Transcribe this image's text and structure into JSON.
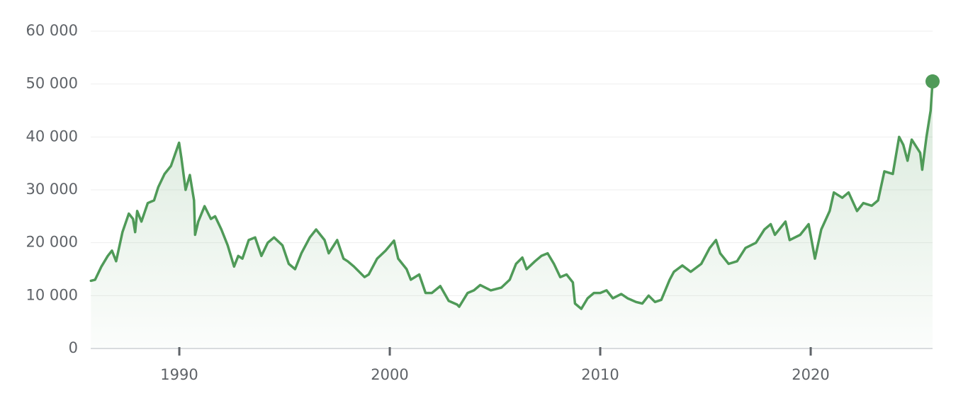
{
  "chart_data": {
    "type": "line",
    "color": "#4f9a58",
    "grid": true,
    "xlim": [
      1985.79,
      2025.79
    ],
    "ylim": [
      0,
      60000
    ],
    "xticks": [
      1990,
      2000,
      2010,
      2020
    ],
    "yticks": [
      {
        "value": 0,
        "label": "0"
      },
      {
        "value": 10000,
        "label": "10 000"
      },
      {
        "value": 20000,
        "label": "20 000"
      },
      {
        "value": 30000,
        "label": "30 000"
      },
      {
        "value": 40000,
        "label": "40 000"
      },
      {
        "value": 50000,
        "label": "50 000"
      },
      {
        "value": 60000,
        "label": "60 000"
      }
    ],
    "x": [
      1985.8,
      1986.0,
      1986.3,
      1986.6,
      1986.8,
      1987.0,
      1987.3,
      1987.6,
      1987.8,
      1987.9,
      1988.0,
      1988.2,
      1988.5,
      1988.8,
      1989.0,
      1989.3,
      1989.6,
      1989.99,
      1990.1,
      1990.3,
      1990.5,
      1990.7,
      1990.75,
      1990.9,
      1991.2,
      1991.5,
      1991.7,
      1992.0,
      1992.3,
      1992.6,
      1992.8,
      1993.0,
      1993.3,
      1993.6,
      1993.9,
      1994.2,
      1994.5,
      1994.9,
      1995.2,
      1995.5,
      1995.8,
      1996.2,
      1996.5,
      1996.9,
      1997.1,
      1997.5,
      1997.8,
      1998.0,
      1998.3,
      1998.8,
      1999.0,
      1999.4,
      1999.8,
      2000.2,
      2000.4,
      2000.8,
      2001.0,
      2001.4,
      2001.7,
      2002.0,
      2002.4,
      2002.8,
      2003.2,
      2003.3,
      2003.7,
      2004.0,
      2004.3,
      2004.8,
      2005.3,
      2005.7,
      2006.0,
      2006.3,
      2006.5,
      2006.9,
      2007.2,
      2007.5,
      2007.8,
      2008.1,
      2008.4,
      2008.7,
      2008.8,
      2009.1,
      2009.4,
      2009.7,
      2010.0,
      2010.3,
      2010.6,
      2011.0,
      2011.3,
      2011.7,
      2012.0,
      2012.3,
      2012.6,
      2012.9,
      2013.3,
      2013.5,
      2013.9,
      2014.3,
      2014.8,
      2015.2,
      2015.5,
      2015.7,
      2016.1,
      2016.5,
      2016.9,
      2017.4,
      2017.8,
      2018.1,
      2018.3,
      2018.8,
      2019.0,
      2019.5,
      2019.9,
      2020.2,
      2020.5,
      2020.9,
      2021.1,
      2021.5,
      2021.8,
      2022.2,
      2022.5,
      2022.9,
      2023.2,
      2023.5,
      2023.9,
      2024.2,
      2024.4,
      2024.6,
      2024.8,
      2025.2,
      2025.3,
      2025.5,
      2025.7,
      2025.79
    ],
    "values": [
      12800,
      13000,
      15500,
      17500,
      18500,
      16500,
      22000,
      25500,
      24500,
      22000,
      26000,
      24000,
      27500,
      28000,
      30500,
      33000,
      34500,
      38900,
      36000,
      30000,
      32800,
      28000,
      21500,
      24000,
      26900,
      24500,
      25000,
      22500,
      19500,
      15500,
      17500,
      17000,
      20500,
      21000,
      17500,
      20000,
      21000,
      19500,
      16000,
      15000,
      18000,
      21000,
      22500,
      20500,
      18000,
      20500,
      17000,
      16500,
      15500,
      13500,
      14000,
      17000,
      18500,
      20400,
      17000,
      15000,
      13000,
      14000,
      10500,
      10500,
      11800,
      9000,
      8300,
      7900,
      10500,
      11000,
      12000,
      11000,
      11500,
      13000,
      16000,
      17200,
      15000,
      16500,
      17500,
      18000,
      16000,
      13500,
      14000,
      12500,
      8500,
      7500,
      9500,
      10500,
      10500,
      11000,
      9500,
      10300,
      9500,
      8800,
      8500,
      10000,
      8800,
      9200,
      13000,
      14500,
      15700,
      14500,
      16000,
      19000,
      20500,
      18000,
      16000,
      16500,
      19000,
      20000,
      22500,
      23500,
      21500,
      24000,
      20500,
      21500,
      23500,
      17000,
      22500,
      26000,
      29500,
      28500,
      29500,
      26000,
      27500,
      27000,
      28000,
      33500,
      33000,
      40000,
      38500,
      35500,
      39500,
      37000,
      33800,
      40000,
      45000,
      50500
    ]
  }
}
